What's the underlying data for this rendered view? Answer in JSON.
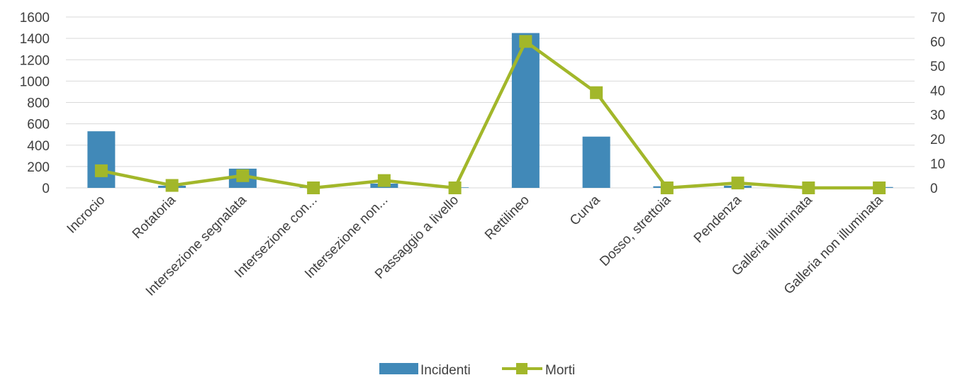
{
  "chart_data": {
    "type": "bar",
    "categories": [
      "Incrocio",
      "Rotatoria",
      "Intersezione segnalata",
      "Intersezione con...",
      "Intersezione non...",
      "Passaggio a livello",
      "Rettilineo",
      "Curva",
      "Dosso, strettoia",
      "Pendenza",
      "Galleria illuminata",
      "Galleria non illuminata"
    ],
    "series": [
      {
        "name": "Incidenti",
        "kind": "bar",
        "axis": "left",
        "color": "#4189B8",
        "values": [
          530,
          20,
          180,
          5,
          40,
          5,
          1450,
          480,
          15,
          20,
          5,
          8
        ]
      },
      {
        "name": "Morti",
        "kind": "line",
        "axis": "right",
        "color": "#A2B72A",
        "values": [
          7,
          1,
          5,
          0,
          3,
          0,
          60,
          39,
          0,
          2,
          0,
          0
        ]
      }
    ],
    "y_left": {
      "min": 0,
      "max": 1600,
      "ticks": [
        "0",
        "200",
        "400",
        "600",
        "800",
        "1000",
        "1200",
        "1400",
        "1600"
      ]
    },
    "y_right": {
      "min": 0,
      "max": 70,
      "ticks": [
        "0",
        "10",
        "20",
        "30",
        "40",
        "50",
        "60",
        "70"
      ]
    },
    "grid": true,
    "legend_position": "bottom"
  }
}
